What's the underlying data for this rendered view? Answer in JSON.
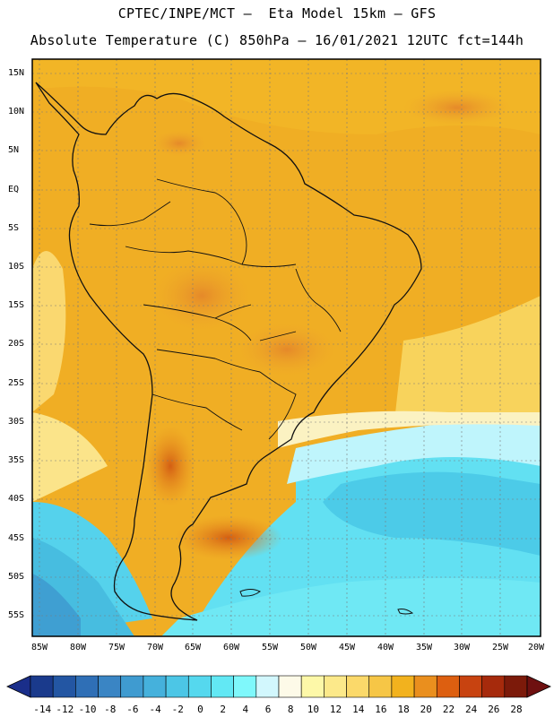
{
  "header": {
    "title_line1": "CPTEC/INPE/MCT –  Eta Model 15km – GFS",
    "title_line2": "Absolute Temperature (C) 850hPa – 16/01/2021 12UTC fct=144h"
  },
  "map": {
    "latitude_labels": [
      "15N",
      "10N",
      "5N",
      "EQ",
      "5S",
      "10S",
      "15S",
      "20S",
      "25S",
      "30S",
      "35S",
      "40S",
      "45S",
      "50S",
      "55S"
    ],
    "longitude_labels": [
      "85W",
      "80W",
      "75W",
      "70W",
      "65W",
      "60W",
      "55W",
      "50W",
      "45W",
      "40W",
      "35W",
      "30W",
      "25W",
      "20W"
    ],
    "region": "South America"
  },
  "colorbar": {
    "labels": [
      "-14",
      "-12",
      "-10",
      "-8",
      "-6",
      "-4",
      "-2",
      "0",
      "2",
      "4",
      "6",
      "8",
      "10",
      "12",
      "14",
      "16",
      "18",
      "20",
      "22",
      "24",
      "26",
      "28"
    ],
    "colors": [
      "#1a3a8c",
      "#2356a3",
      "#2f6fb6",
      "#3a85c4",
      "#3f9bd0",
      "#45b1dc",
      "#4cc6e6",
      "#55d8ee",
      "#62e8f4",
      "#7ff8fb",
      "#d2f7fd",
      "#fdfae8",
      "#fdf8a8",
      "#fce98a",
      "#fbd96a",
      "#f6c646",
      "#f2b21e",
      "#ea8f1e",
      "#dd5f10",
      "#c84310",
      "#a62a0c",
      "#7c1a0a"
    ],
    "low_end_color": "#1a2e8a",
    "high_end_color": "#6e1010"
  }
}
